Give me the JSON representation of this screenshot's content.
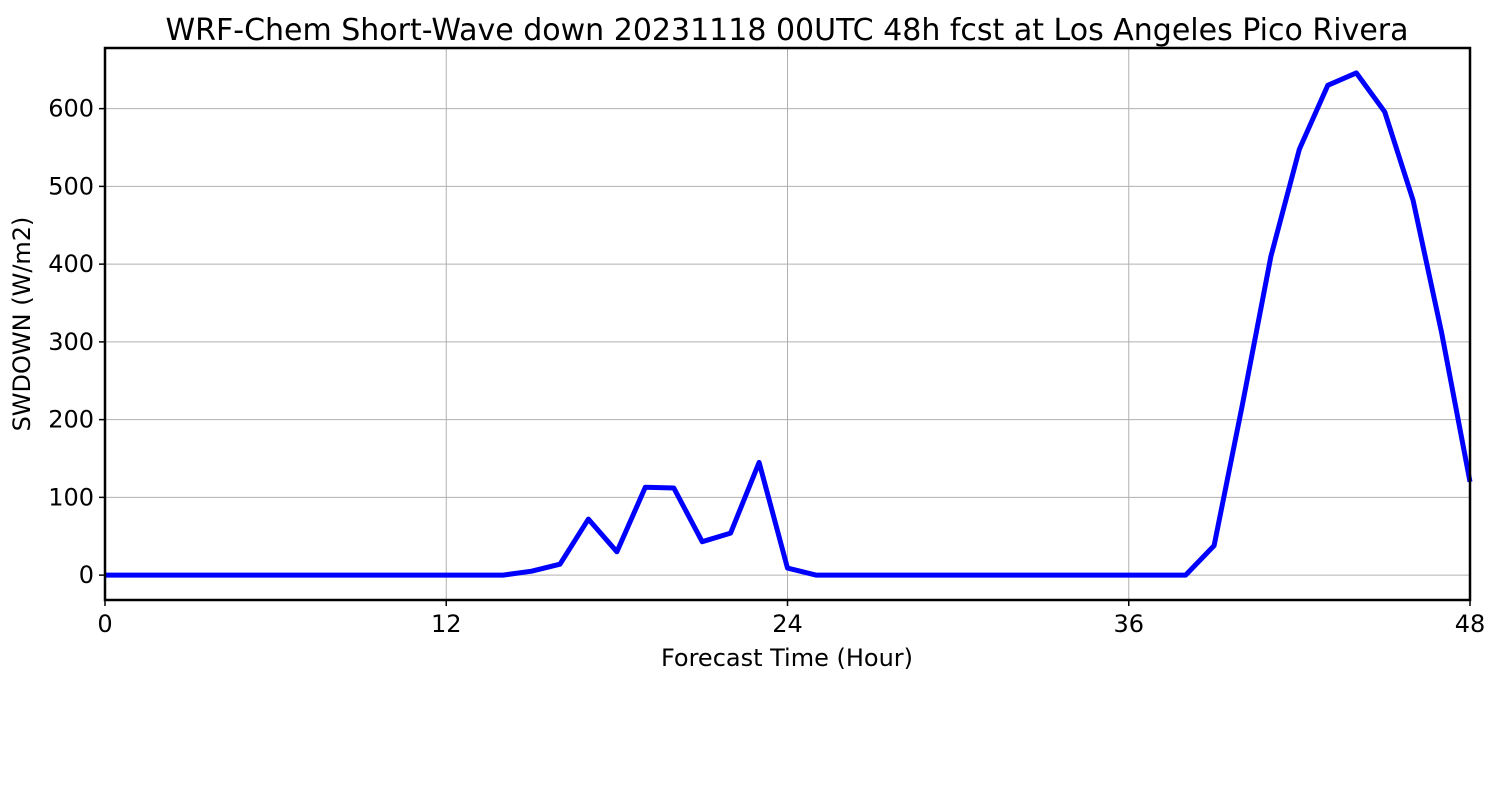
{
  "chart_data": {
    "type": "line",
    "title": "WRF-Chem Short-Wave down  20231118 00UTC 48h fcst at Los Angeles Pico Rivera",
    "xlabel": "Forecast Time (Hour)",
    "ylabel": "SWDOWN  (W/m2)",
    "xlim": [
      0,
      48
    ],
    "ylim": [
      -32,
      678
    ],
    "xticks": [
      0,
      12,
      24,
      36,
      48
    ],
    "yticks": [
      0,
      100,
      200,
      300,
      400,
      500,
      600
    ],
    "grid": true,
    "legend": "none",
    "series": [
      {
        "color": "#0000ff",
        "x": [
          0,
          1,
          2,
          3,
          4,
          5,
          6,
          7,
          8,
          9,
          10,
          11,
          12,
          13,
          14,
          15,
          16,
          17,
          18,
          19,
          20,
          21,
          22,
          23,
          24,
          25,
          26,
          27,
          28,
          29,
          30,
          31,
          32,
          33,
          34,
          35,
          36,
          37,
          38,
          39,
          40,
          41,
          42,
          43,
          44,
          45,
          46,
          47,
          48
        ],
        "y": [
          0,
          0,
          0,
          0,
          0,
          0,
          0,
          0,
          0,
          0,
          0,
          0,
          0,
          0,
          0,
          5,
          14,
          72,
          30,
          113,
          112,
          43,
          54,
          145,
          9,
          0,
          0,
          0,
          0,
          0,
          0,
          0,
          0,
          0,
          0,
          0,
          0,
          0,
          0,
          38,
          220,
          410,
          548,
          630,
          646,
          596,
          482,
          312,
          120
        ]
      }
    ]
  }
}
